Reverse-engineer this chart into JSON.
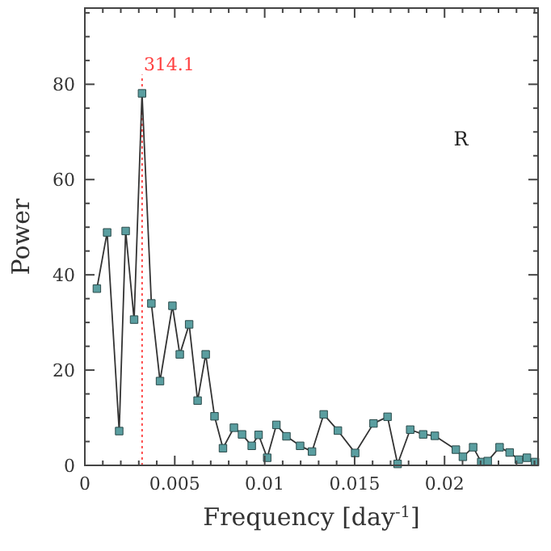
{
  "chart_data": {
    "type": "line",
    "xlabel": "Frequency [day$^{-1}$]",
    "ylabel": "Power",
    "x": [
      0.00067,
      0.00124,
      0.00191,
      0.00227,
      0.00274,
      0.00318,
      0.0037,
      0.00418,
      0.00487,
      0.00528,
      0.0058,
      0.00627,
      0.00672,
      0.00721,
      0.00768,
      0.00829,
      0.00874,
      0.00928,
      0.00966,
      0.01014,
      0.01065,
      0.01121,
      0.01197,
      0.01263,
      0.01328,
      0.01407,
      0.01503,
      0.01605,
      0.01683,
      0.01739,
      0.01809,
      0.01881,
      0.01946,
      0.02063,
      0.02102,
      0.02159,
      0.02204,
      0.0224,
      0.02306,
      0.02362,
      0.02413,
      0.02458,
      0.02503
    ],
    "series": [
      {
        "color": "#5a9ea0",
        "values": [
          37.1,
          48.9,
          7.2,
          49.2,
          30.6,
          78.1,
          34.0,
          17.7,
          33.5,
          23.3,
          29.6,
          13.6,
          23.3,
          10.3,
          3.6,
          7.9,
          6.5,
          4.1,
          6.4,
          1.6,
          8.5,
          6.1,
          4.1,
          2.9,
          10.7,
          7.3,
          2.6,
          8.8,
          10.2,
          0.3,
          7.5,
          6.5,
          6.2,
          3.3,
          1.8,
          3.8,
          0.7,
          0.9,
          3.8,
          2.7,
          1.2,
          1.6,
          0.7
        ]
      }
    ],
    "marker": "square",
    "line_style": "solid",
    "xlim": [
      0,
      0.0252
    ],
    "ylim": [
      0,
      96
    ],
    "xticks": [
      0,
      {
        "value": 0.001,
        "label": null
      },
      {
        "value": 0.002,
        "label": null
      },
      {
        "value": 0.003,
        "label": null
      },
      {
        "value": 0.004,
        "label": null
      },
      0.005,
      {
        "value": 0.006,
        "label": null
      },
      {
        "value": 0.007,
        "label": null
      },
      {
        "value": 0.008,
        "label": null
      },
      {
        "value": 0.009,
        "label": null
      },
      0.01,
      {
        "value": 0.011,
        "label": null
      },
      {
        "value": 0.012,
        "label": null
      },
      {
        "value": 0.013,
        "label": null
      },
      {
        "value": 0.014,
        "label": null
      },
      0.015,
      {
        "value": 0.016,
        "label": null
      },
      {
        "value": 0.017,
        "label": null
      },
      {
        "value": 0.018,
        "label": null
      },
      {
        "value": 0.019,
        "label": null
      },
      0.02,
      {
        "value": 0.021,
        "label": null
      },
      {
        "value": 0.022,
        "label": null
      },
      {
        "value": 0.023,
        "label": null
      },
      {
        "value": 0.024,
        "label": null
      },
      {
        "value": 0.025,
        "label": null
      }
    ],
    "yticks": [
      0,
      {
        "value": 5,
        "label": null
      },
      {
        "value": 10,
        "label": null
      },
      {
        "value": 15,
        "label": null
      },
      20,
      {
        "value": 25,
        "label": null
      },
      {
        "value": 30,
        "label": null
      },
      {
        "value": 35,
        "label": null
      },
      40,
      {
        "value": 45,
        "label": null
      },
      {
        "value": 50,
        "label": null
      },
      {
        "value": 55,
        "label": null
      },
      60,
      {
        "value": 65,
        "label": null
      },
      {
        "value": 70,
        "label": null
      },
      {
        "value": 75,
        "label": null
      },
      80,
      {
        "value": 85,
        "label": null
      },
      {
        "value": 90,
        "label": null
      },
      {
        "value": 95,
        "label": null
      }
    ],
    "ref_lines": [
      {
        "axis": "x",
        "value": 0.003184,
        "color": "#ff4040",
        "line_style": "dotted"
      }
    ],
    "annotations": [
      {
        "text": "314.1",
        "x": 0.003184,
        "y": 83
      },
      "R"
    ],
    "grid": false
  }
}
